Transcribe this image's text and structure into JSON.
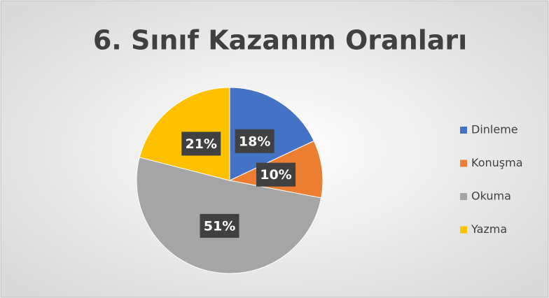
{
  "chart_data": {
    "type": "pie",
    "title": "6. Sınıf Kazanım Oranları",
    "categories": [
      "Dinleme",
      "Konuşma",
      "Okuma",
      "Yazma"
    ],
    "values": [
      18,
      10,
      51,
      21
    ],
    "value_labels": [
      "18%",
      "10%",
      "51%",
      "21%"
    ],
    "colors": [
      "#4472c4",
      "#ed7d31",
      "#a5a5a5",
      "#ffc000"
    ],
    "legend": "right"
  }
}
